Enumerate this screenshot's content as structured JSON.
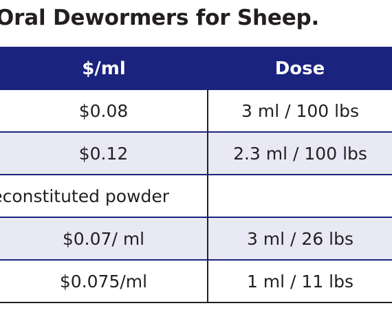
{
  "title": "Oral Dewormers for Sheep.",
  "table": {
    "headers": [
      "$/ml",
      "Dose"
    ],
    "rows": [
      {
        "price": "$0.08",
        "dose": "3 ml / 100 lbs"
      },
      {
        "price": "$0.12",
        "dose": "2.3 ml / 100 lbs"
      },
      {
        "price": "Reconstituted powder",
        "dose": ""
      },
      {
        "price": "$0.07/ ml",
        "dose": "3 ml / 26 lbs"
      },
      {
        "price": "$0.075/ml",
        "dose": "1 ml / 11 lbs"
      }
    ]
  },
  "colors": {
    "header_bg": "#1a237e",
    "header_text": "#ffffff",
    "alt_row_bg": "#e8e9f5",
    "text": "#231f20"
  }
}
